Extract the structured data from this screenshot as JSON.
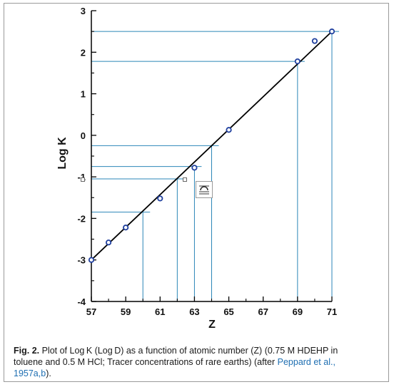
{
  "chart_data": {
    "type": "scatter",
    "xlabel": "Z",
    "ylabel": "Log K",
    "xlim": [
      57,
      71
    ],
    "ylim": [
      -4,
      3
    ],
    "x_ticks": [
      "57",
      "59",
      "61",
      "63",
      "65",
      "67",
      "69",
      "71"
    ],
    "y_ticks": [
      "-4",
      "-3",
      "-2",
      "-1",
      "0",
      "1",
      "2",
      "3"
    ],
    "grid": false,
    "series": [
      {
        "x": [
          57,
          58,
          59,
          61,
          63,
          65,
          69,
          70,
          71
        ],
        "y": [
          -3.0,
          -2.58,
          -2.22,
          -1.52,
          -0.78,
          0.13,
          1.78,
          2.27,
          2.5
        ],
        "marker": "circle",
        "color": "#1f3f9e"
      }
    ],
    "fit_line": {
      "x": [
        57,
        71
      ],
      "y": [
        -3.0,
        2.5
      ],
      "color": "#000000"
    },
    "reference_lines": [
      {
        "x": 60.0,
        "y": -1.85
      },
      {
        "x": 62.0,
        "y": -1.05
      },
      {
        "x": 63.0,
        "y": -0.75
      },
      {
        "x": 64.0,
        "y": -0.25
      },
      {
        "x": 69.0,
        "y": 1.78
      },
      {
        "x": 71.0,
        "y": 2.5
      }
    ],
    "reference_color": "#2b86b8"
  },
  "caption": {
    "fig_label": "Fig. 2.",
    "line1": " Plot of Log K (Log D) as a function of atomic number (Z) (0.75 M HDEHP in",
    "line2_text": "toluene and 0.5 M HCl; Tracer concentrations of rare earths) (after ",
    "line2_cite": "Peppard et al.,",
    "line3_cite": "1957a,b",
    "line3_end": ")."
  }
}
